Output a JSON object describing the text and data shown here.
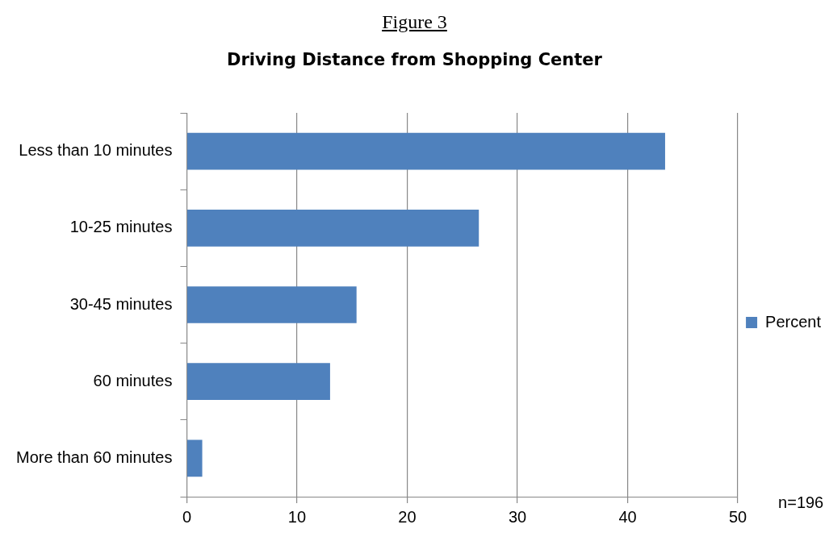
{
  "chart_data": {
    "type": "bar",
    "orientation": "horizontal",
    "title": "Figure 3",
    "subtitle": "Driving Distance from Shopping Center",
    "categories": [
      "Less than 10 minutes",
      "10-25 minutes",
      "30-45 minutes",
      "60 minutes",
      "More than 60 minutes"
    ],
    "series": [
      {
        "name": "Percent",
        "color": "#4f81bd",
        "values": [
          43.4,
          26.5,
          15.4,
          13.0,
          1.4
        ]
      }
    ],
    "xlim": [
      0,
      50
    ],
    "xticks": [
      0,
      10,
      20,
      30,
      40,
      50
    ],
    "grid": "x",
    "legend": "right",
    "annotations": [
      "n=196"
    ]
  }
}
